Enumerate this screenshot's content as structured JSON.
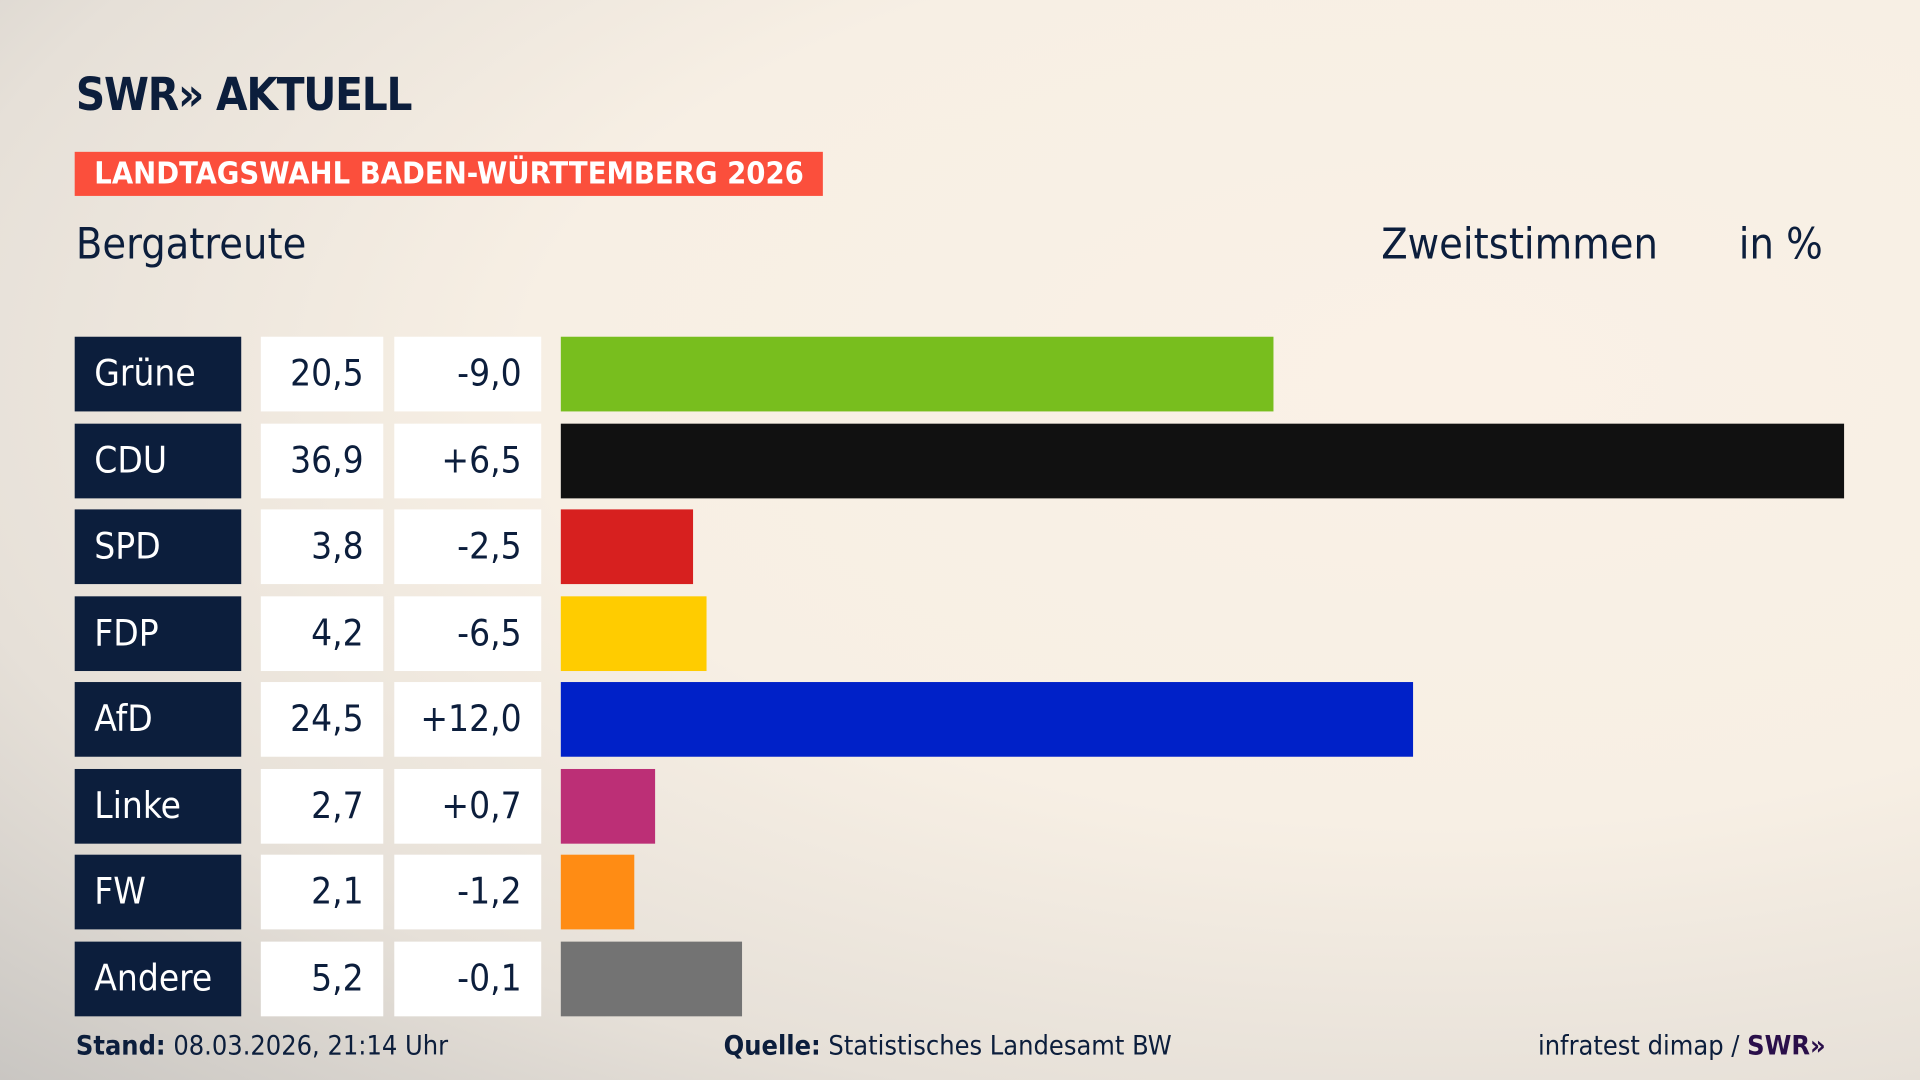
{
  "header": {
    "logo": "SWR» AKTUELL",
    "banner": "LANDTAGSWAHL BADEN-WÜRTTEMBERG 2026",
    "place": "Bergatreute",
    "metric": "Zweitstimmen",
    "unit": "in %"
  },
  "chart_data": {
    "type": "bar",
    "orientation": "horizontal",
    "title": "Bergatreute",
    "xlim": [
      0,
      36.9
    ],
    "categories": [
      "Grüne",
      "CDU",
      "SPD",
      "FDP",
      "AfD",
      "Linke",
      "FW",
      "Andere"
    ],
    "values": [
      20.5,
      36.9,
      3.8,
      4.2,
      24.5,
      2.7,
      2.1,
      5.2
    ],
    "value_labels": [
      "20,5",
      "36,9",
      "3,8",
      "4,2",
      "24,5",
      "2,7",
      "2,1",
      "5,2"
    ],
    "diff_labels": [
      "-9,0",
      "+6,5",
      "-2,5",
      "-6,5",
      "+12,0",
      "+0,7",
      "-1,2",
      "-0,1"
    ],
    "colors": [
      "#78be1e",
      "#111111",
      "#d7201f",
      "#ffcc00",
      "#0021c8",
      "#bc2f76",
      "#ff8c14",
      "#737373"
    ]
  },
  "footer": {
    "stand_label": "Stand:",
    "stand_value": "08.03.2026, 21:14 Uhr",
    "source_label": "Quelle:",
    "source_value": "Statistisches Landesamt BW",
    "credit": "infratest dimap / ",
    "credit_logo": "SWR»"
  }
}
